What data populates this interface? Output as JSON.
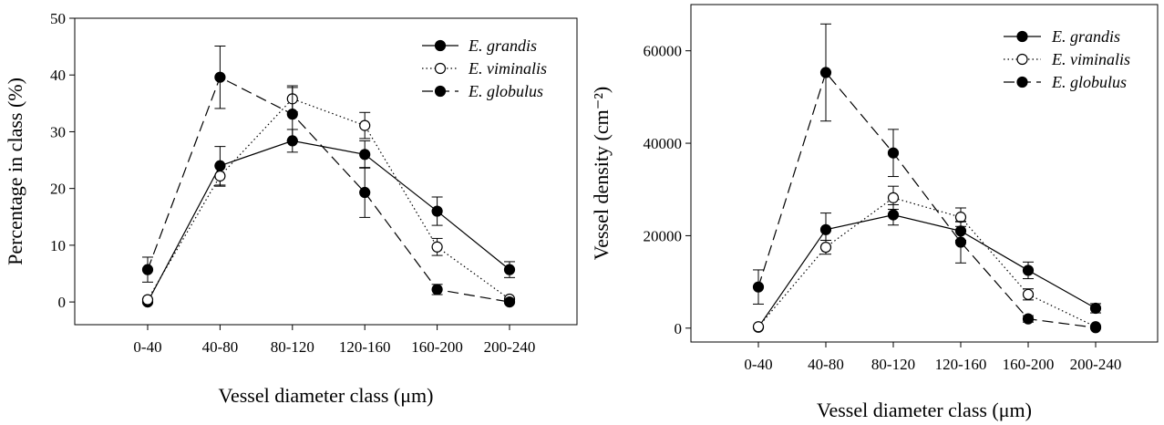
{
  "chart_data": [
    {
      "type": "line",
      "xlabel": "Vessel diameter class (μm)",
      "ylabel": "Percentage in class (%)",
      "categories": [
        "0-40",
        "40-80",
        "80-120",
        "120-160",
        "160-200",
        "200-240"
      ],
      "ylim": [
        -4,
        50
      ],
      "yticks": [
        0,
        10,
        20,
        30,
        40,
        50
      ],
      "legend_position": "top-right",
      "grid": false,
      "series": [
        {
          "name": "E. grandis",
          "marker": "filled-circle",
          "line_style": "solid",
          "values": [
            0,
            24,
            28.4,
            26,
            16,
            5.7
          ],
          "errors": [
            0,
            3.4,
            2,
            2.4,
            2.5,
            1.4
          ]
        },
        {
          "name": "E. viminalis",
          "marker": "open-circle",
          "line_style": "dotted",
          "values": [
            0.4,
            22.2,
            35.8,
            31.1,
            9.7,
            0.5
          ],
          "errors": [
            0,
            1.8,
            2.3,
            2.3,
            1.5,
            0
          ]
        },
        {
          "name": "E. globulus",
          "marker": "filled-circle",
          "line_style": "dashed",
          "values": [
            5.7,
            39.6,
            33.1,
            19.3,
            2.2,
            0
          ],
          "errors": [
            2.2,
            5.5,
            4.7,
            4.4,
            0.9,
            0
          ]
        }
      ]
    },
    {
      "type": "line",
      "xlabel": "Vessel diameter class (μm)",
      "ylabel": "Vessel density (cm⁻²)",
      "categories": [
        "0-40",
        "40-80",
        "80-120",
        "120-160",
        "160-200",
        "200-240"
      ],
      "ylim": [
        -3000,
        70000
      ],
      "yticks": [
        0,
        20000,
        40000,
        60000
      ],
      "legend_position": "top-right",
      "grid": false,
      "series": [
        {
          "name": "E. grandis",
          "marker": "filled-circle",
          "line_style": "solid",
          "values": [
            200,
            21300,
            24500,
            21000,
            12500,
            4300
          ],
          "errors": [
            0,
            3600,
            2200,
            2000,
            1800,
            1000
          ]
        },
        {
          "name": "E. viminalis",
          "marker": "open-circle",
          "line_style": "dotted",
          "values": [
            300,
            17500,
            28200,
            24000,
            7300,
            300
          ],
          "errors": [
            0,
            1500,
            2500,
            2000,
            1200,
            0
          ]
        },
        {
          "name": "E. globulus",
          "marker": "filled-circle",
          "line_style": "dashed",
          "values": [
            8900,
            55300,
            37900,
            18600,
            2000,
            100
          ],
          "errors": [
            3700,
            10500,
            5100,
            4500,
            700,
            0
          ]
        }
      ]
    }
  ]
}
